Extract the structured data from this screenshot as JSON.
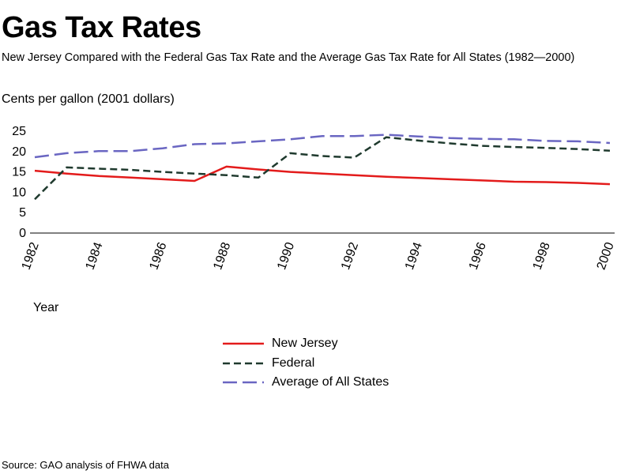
{
  "chart_data": {
    "type": "line",
    "title": "Gas Tax Rates",
    "subtitle": "New Jersey Compared with the Federal Gas Tax Rate and the Average Gas Tax Rate for All States (1982—2000)",
    "ylabel": "Cents per gallon (2001 dollars)",
    "xlabel": "Year",
    "source": "Source: GAO analysis of FHWA data",
    "ylim": [
      0,
      25
    ],
    "y_ticks": [
      "25",
      "20",
      "15",
      "10",
      "5",
      "0"
    ],
    "x_ticks": [
      "1982",
      "1984",
      "1986",
      "1988",
      "1990",
      "1992",
      "1994",
      "1996",
      "1998",
      "2000"
    ],
    "legend_position": "below",
    "grid": false,
    "x": [
      1982,
      1983,
      1984,
      1985,
      1986,
      1987,
      1988,
      1989,
      1990,
      1991,
      1992,
      1993,
      1994,
      1995,
      1996,
      1997,
      1998,
      1999,
      2000
    ],
    "series": [
      {
        "name": "New Jersey",
        "color": "#e31b1b",
        "style": "solid",
        "values": [
          15.3,
          14.6,
          14.0,
          13.6,
          13.2,
          12.8,
          16.3,
          15.6,
          15.0,
          14.6,
          14.2,
          13.8,
          13.5,
          13.2,
          12.9,
          12.6,
          12.5,
          12.3,
          12.0
        ]
      },
      {
        "name": "Federal",
        "color": "#1f3a2e",
        "style": "dashed",
        "values": [
          8.3,
          16.1,
          15.8,
          15.5,
          15.0,
          14.6,
          14.2,
          13.6,
          19.6,
          18.9,
          18.5,
          23.5,
          22.7,
          22.0,
          21.4,
          21.1,
          20.9,
          20.6,
          20.2
        ]
      },
      {
        "name": "Average of All States",
        "color": "#6a66c2",
        "style": "longdash",
        "values": [
          18.6,
          19.6,
          20.1,
          20.1,
          20.8,
          21.8,
          22.0,
          22.5,
          23.0,
          23.8,
          23.8,
          24.1,
          23.7,
          23.3,
          23.1,
          23.0,
          22.6,
          22.5,
          22.1
        ]
      }
    ]
  }
}
